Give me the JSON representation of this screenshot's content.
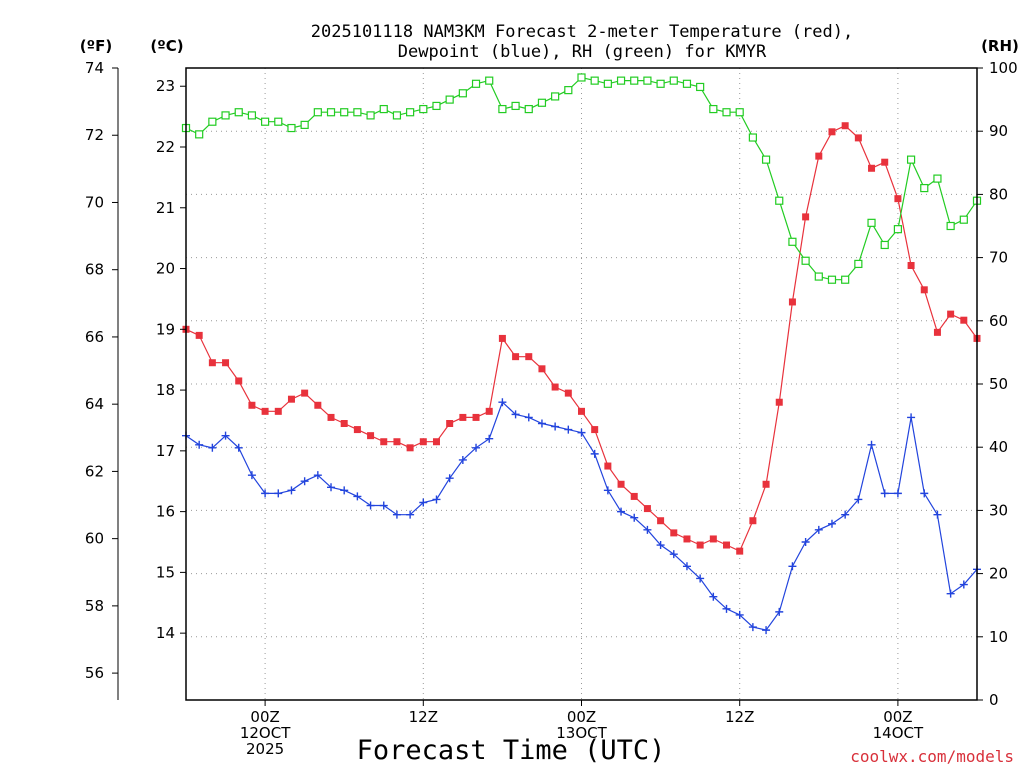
{
  "title_lines": [
    "2025101118 NAM3KM Forecast 2-meter Temperature (red),",
    "Dewpoint (blue), RH (green) for KMYR"
  ],
  "units": {
    "f": "(ºF)",
    "c": "(ºC)",
    "rh": "(RH)"
  },
  "xlabel": "Forecast Time (UTC)",
  "credit": "coolwx.com/models",
  "colors": {
    "temperature": "#e8323c",
    "dewpoint": "#2244dd",
    "rh": "#22cc22"
  },
  "chart_data": {
    "type": "line",
    "title": "2025101118 NAM3KM Forecast 2-meter Temperature (red), Dewpoint (blue), RH (green) for KMYR",
    "xlabel": "Forecast Time (UTC)",
    "x_unit": "forecast hour",
    "xlim": [
      0,
      60
    ],
    "x_ticks": [
      {
        "x": 6,
        "lines": [
          "00Z",
          "12OCT",
          "2025"
        ]
      },
      {
        "x": 18,
        "lines": [
          "12Z"
        ]
      },
      {
        "x": 30,
        "lines": [
          "00Z",
          "13OCT"
        ]
      },
      {
        "x": 42,
        "lines": [
          "12Z"
        ]
      },
      {
        "x": 54,
        "lines": [
          "00Z",
          "14OCT"
        ]
      }
    ],
    "y_axes": {
      "fahrenheit": {
        "label": "(ºF)",
        "range": [
          55.2,
          74.0
        ],
        "ticks": [
          56,
          58,
          60,
          62,
          64,
          66,
          68,
          70,
          72,
          74
        ]
      },
      "celsius": {
        "label": "(ºC)",
        "range": [
          12.9,
          23.3
        ],
        "ticks": [
          14,
          15,
          16,
          17,
          18,
          19,
          20,
          21,
          22,
          23
        ]
      },
      "rh": {
        "label": "(RH)",
        "range": [
          0,
          100
        ],
        "ticks": [
          0,
          10,
          20,
          30,
          40,
          50,
          60,
          70,
          80,
          90,
          100
        ]
      }
    },
    "x": [
      0,
      1,
      2,
      3,
      4,
      5,
      6,
      7,
      8,
      9,
      10,
      11,
      12,
      13,
      14,
      15,
      16,
      17,
      18,
      19,
      20,
      21,
      22,
      23,
      24,
      25,
      26,
      27,
      28,
      29,
      30,
      31,
      32,
      33,
      34,
      35,
      36,
      37,
      38,
      39,
      40,
      41,
      42,
      43,
      44,
      45,
      46,
      47,
      48,
      49,
      50,
      51,
      52,
      53,
      54,
      55,
      56,
      57,
      58,
      59,
      60
    ],
    "series": [
      {
        "name": "Temperature",
        "unit": "°C",
        "axis": "celsius",
        "marker": "filled-square",
        "values": [
          19.0,
          18.9,
          18.45,
          18.45,
          18.15,
          17.75,
          17.65,
          17.65,
          17.85,
          17.95,
          17.75,
          17.55,
          17.45,
          17.35,
          17.25,
          17.15,
          17.15,
          17.05,
          17.15,
          17.15,
          17.45,
          17.55,
          17.55,
          17.65,
          18.85,
          18.55,
          18.55,
          18.35,
          18.05,
          17.95,
          17.65,
          17.35,
          16.75,
          16.45,
          16.25,
          16.05,
          15.85,
          15.65,
          15.55,
          15.45,
          15.55,
          15.45,
          15.35,
          15.85,
          16.45,
          17.8,
          19.45,
          20.85,
          21.85,
          22.25,
          22.35,
          22.15,
          21.65,
          21.75,
          21.15,
          20.05,
          19.65,
          18.95,
          19.25,
          19.15,
          18.85
        ]
      },
      {
        "name": "Dewpoint",
        "unit": "°C",
        "axis": "celsius",
        "marker": "plus",
        "values": [
          17.25,
          17.1,
          17.05,
          17.25,
          17.05,
          16.6,
          16.3,
          16.3,
          16.35,
          16.5,
          16.6,
          16.4,
          16.35,
          16.25,
          16.1,
          16.1,
          15.95,
          15.95,
          16.15,
          16.2,
          16.55,
          16.85,
          17.05,
          17.2,
          17.8,
          17.6,
          17.55,
          17.45,
          17.4,
          17.35,
          17.3,
          16.95,
          16.35,
          16.0,
          15.9,
          15.7,
          15.45,
          15.3,
          15.1,
          14.9,
          14.6,
          14.4,
          14.3,
          14.1,
          14.05,
          14.35,
          15.1,
          15.5,
          15.7,
          15.8,
          15.95,
          16.2,
          17.1,
          16.3,
          16.3,
          17.55,
          16.3,
          15.95,
          14.65,
          14.8,
          15.05
        ]
      },
      {
        "name": "RH",
        "unit": "%",
        "axis": "rh",
        "marker": "open-square",
        "values": [
          90.5,
          89.5,
          91.5,
          92.5,
          93,
          92.5,
          91.5,
          91.5,
          90.5,
          91,
          93,
          93,
          93,
          93,
          92.5,
          93.5,
          92.5,
          93,
          93.5,
          94,
          95,
          96,
          97.5,
          98,
          93.5,
          94,
          93.5,
          94.5,
          95.5,
          96.5,
          98.5,
          98,
          97.5,
          98,
          98,
          98,
          97.5,
          98,
          97.5,
          97,
          93.5,
          93,
          93,
          89,
          85.5,
          79,
          72.5,
          69.5,
          67,
          66.5,
          66.5,
          69,
          75.5,
          72,
          74.5,
          85.5,
          81,
          82.5,
          75,
          76,
          79
        ]
      }
    ]
  }
}
